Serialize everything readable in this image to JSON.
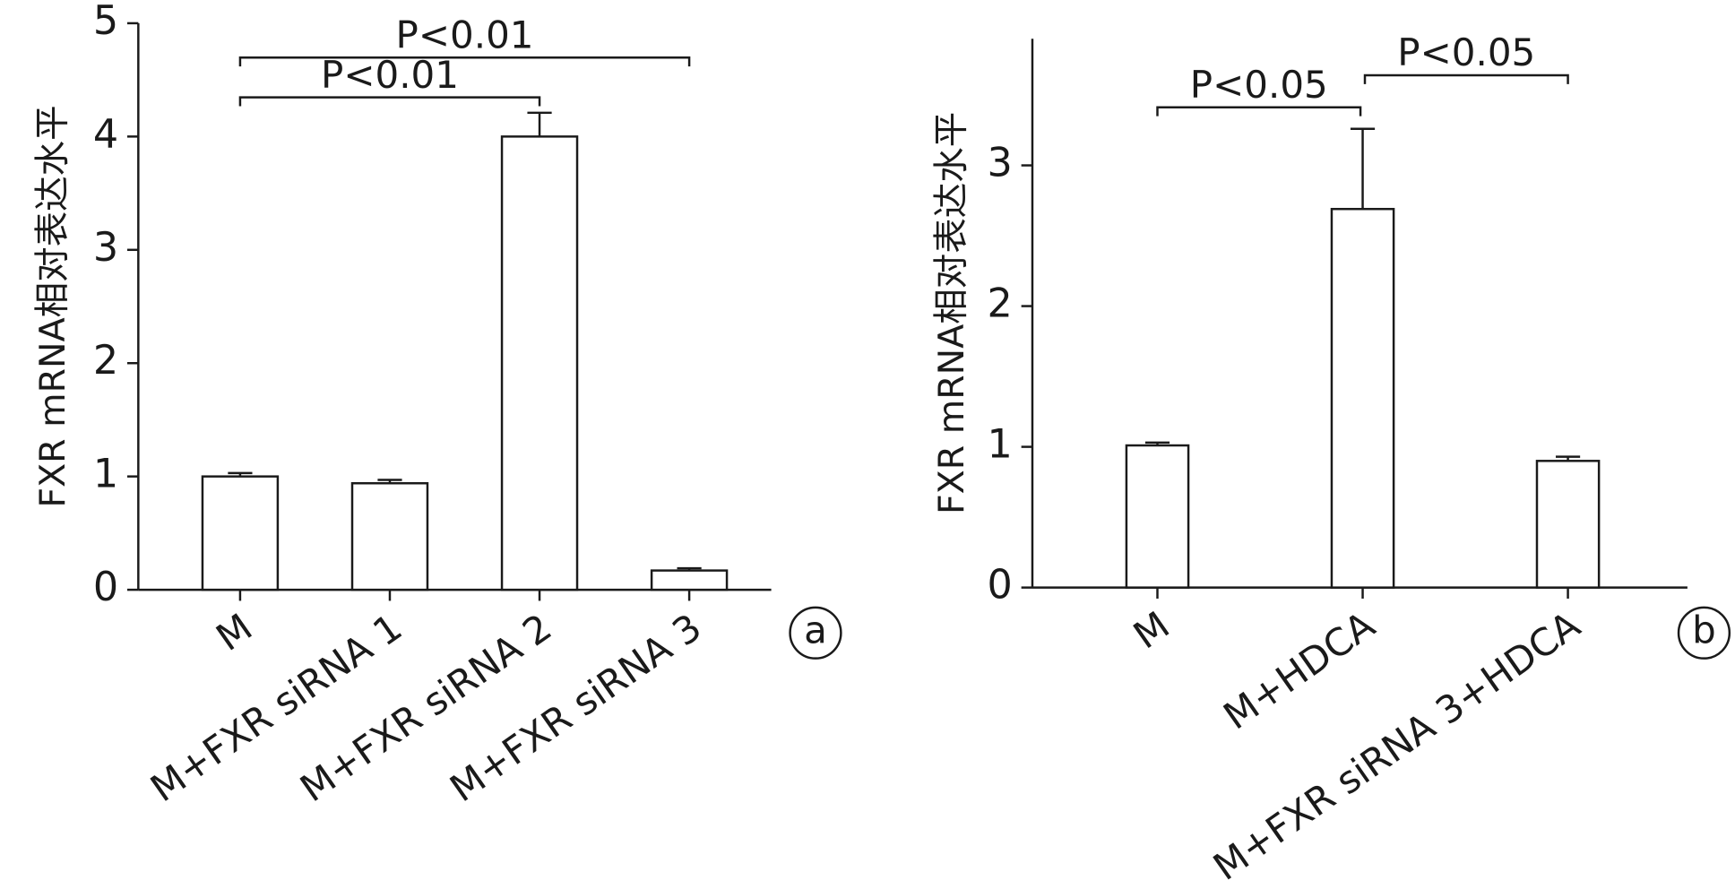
{
  "chart_data": [
    {
      "type": "bar",
      "y_label": "FXR mRNA相对表达水平",
      "panel_label": "a",
      "categories": [
        "M",
        "M+FXR siRNA 1",
        "M+FXR siRNA 2",
        "M+FXR siRNA 3"
      ],
      "values": [
        1.0,
        0.94,
        4.0,
        0.17
      ],
      "errors": [
        0.03,
        0.03,
        0.21,
        0.02
      ],
      "color": "#ffffff",
      "ylim": [
        0,
        5
      ],
      "yticks": [
        0,
        1,
        2,
        3,
        4,
        5
      ],
      "brackets": [
        {
          "from": "M",
          "to": "M+FXR siRNA 3",
          "label": "P<0.01"
        },
        {
          "from": "M",
          "to": "M+FXR siRNA 2",
          "label": "P<0.01"
        }
      ]
    },
    {
      "type": "bar",
      "y_label": "FXR mRNA相对表达水平",
      "panel_label": "b",
      "categories": [
        "M",
        "M+HDCA",
        "M+FXR siRNA 3+HDCA"
      ],
      "values": [
        1.01,
        2.69,
        0.9
      ],
      "errors": [
        0.02,
        0.57,
        0.03
      ],
      "color": "#ffffff",
      "ylim": [
        0,
        3.9
      ],
      "yticks": [
        0,
        1,
        2,
        3
      ],
      "brackets": [
        {
          "from": "M",
          "to": "M+HDCA",
          "label": "P<0.05"
        },
        {
          "from": "M+HDCA",
          "to": "M+FXR siRNA 3+HDCA",
          "label": "P<0.05"
        }
      ]
    }
  ]
}
